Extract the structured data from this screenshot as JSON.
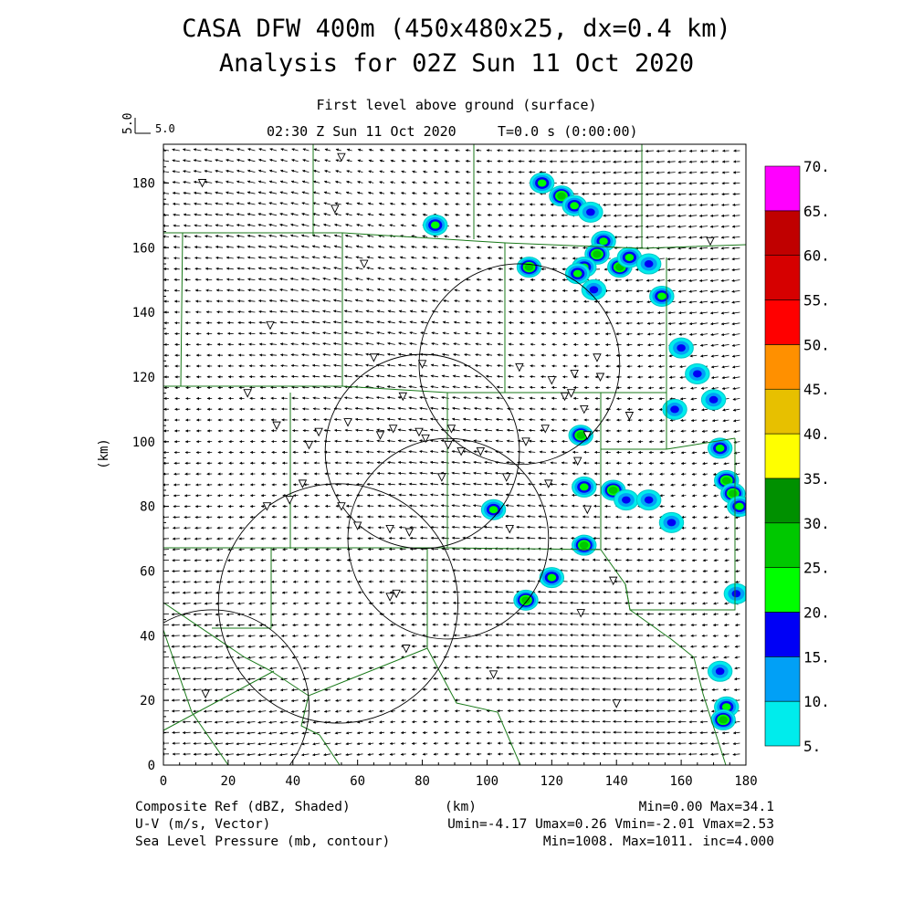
{
  "header": {
    "title_line1": "CASA DFW 400m (450x480x25, dx=0.4 km)",
    "title_line2": "Analysis for 02Z Sun 11 Oct 2020",
    "level_label": "First level above ground (surface)",
    "time_label": "02:30 Z Sun 11 Oct 2020",
    "elapsed_label": "T=0.0 s (0:00:00)",
    "vector_scale_rotated": "5.0",
    "vector_scale_label": "5.0"
  },
  "footer": {
    "field1_label": "Composite Ref (dBZ, Shaded)",
    "xaxis_unit": "(km)",
    "field1_stats": "Min=0.00 Max=34.1",
    "field2_label": "U-V (m/s, Vector)",
    "field2_stats": "Umin=-4.17 Umax=0.26 Vmin=-2.01 Vmax=2.53",
    "field3_label": "Sea Level Pressure (mb, contour)",
    "field3_stats": "Min=1008. Max=1011. inc=4.000"
  },
  "chart_data": {
    "type": "heatmap",
    "xlabel": "(km)",
    "ylabel": "(km)",
    "xlim": [
      0,
      180
    ],
    "ylim": [
      0,
      192
    ],
    "x_ticks": [
      0,
      20,
      40,
      60,
      80,
      100,
      120,
      140,
      160,
      180
    ],
    "y_ticks": [
      0,
      20,
      40,
      60,
      80,
      100,
      120,
      140,
      160,
      180
    ],
    "colorbar": {
      "levels": [
        "5.",
        "10.",
        "15.",
        "20.",
        "25.",
        "30.",
        "35.",
        "40.",
        "45.",
        "50.",
        "55.",
        "60.",
        "65.",
        "70."
      ],
      "colors": [
        "#00ecec",
        "#01a0f6",
        "#0000f6",
        "#00ff00",
        "#00c800",
        "#009000",
        "#ffff00",
        "#e7c000",
        "#ff9000",
        "#ff0000",
        "#d60000",
        "#c00000",
        "#ff00ff"
      ]
    },
    "reflectivity_cells": [
      {
        "x": 117,
        "y": 180,
        "dbz": 20
      },
      {
        "x": 123,
        "y": 176,
        "dbz": 25
      },
      {
        "x": 127,
        "y": 173,
        "dbz": 20
      },
      {
        "x": 132,
        "y": 171,
        "dbz": 15
      },
      {
        "x": 136,
        "y": 162,
        "dbz": 20
      },
      {
        "x": 134,
        "y": 158,
        "dbz": 25
      },
      {
        "x": 130,
        "y": 154,
        "dbz": 20
      },
      {
        "x": 128,
        "y": 152,
        "dbz": 20
      },
      {
        "x": 141,
        "y": 154,
        "dbz": 25
      },
      {
        "x": 144,
        "y": 157,
        "dbz": 20
      },
      {
        "x": 150,
        "y": 155,
        "dbz": 15
      },
      {
        "x": 154,
        "y": 145,
        "dbz": 20
      },
      {
        "x": 133,
        "y": 147,
        "dbz": 15
      },
      {
        "x": 113,
        "y": 154,
        "dbz": 25
      },
      {
        "x": 160,
        "y": 129,
        "dbz": 15
      },
      {
        "x": 165,
        "y": 121,
        "dbz": 15
      },
      {
        "x": 170,
        "y": 113,
        "dbz": 15
      },
      {
        "x": 158,
        "y": 110,
        "dbz": 15
      },
      {
        "x": 172,
        "y": 98,
        "dbz": 20
      },
      {
        "x": 174,
        "y": 88,
        "dbz": 25
      },
      {
        "x": 176,
        "y": 84,
        "dbz": 25
      },
      {
        "x": 178,
        "y": 80,
        "dbz": 20
      },
      {
        "x": 139,
        "y": 85,
        "dbz": 25
      },
      {
        "x": 143,
        "y": 82,
        "dbz": 15
      },
      {
        "x": 150,
        "y": 82,
        "dbz": 15
      },
      {
        "x": 157,
        "y": 75,
        "dbz": 15
      },
      {
        "x": 129,
        "y": 102,
        "dbz": 25
      },
      {
        "x": 130,
        "y": 86,
        "dbz": 20
      },
      {
        "x": 130,
        "y": 68,
        "dbz": 25
      },
      {
        "x": 120,
        "y": 58,
        "dbz": 20
      },
      {
        "x": 112,
        "y": 51,
        "dbz": 25
      },
      {
        "x": 102,
        "y": 79,
        "dbz": 20
      },
      {
        "x": 84,
        "y": 167,
        "dbz": 20
      },
      {
        "x": 177,
        "y": 53,
        "dbz": 15
      },
      {
        "x": 172,
        "y": 29,
        "dbz": 15
      },
      {
        "x": 174,
        "y": 18,
        "dbz": 20
      },
      {
        "x": 173,
        "y": 14,
        "dbz": 25
      }
    ],
    "pressure_contours_km": [
      {
        "cx": 88,
        "cy": 70,
        "r": 31
      },
      {
        "cx": 80,
        "cy": 97,
        "r": 30
      },
      {
        "cx": 110,
        "cy": 124,
        "r": 31
      },
      {
        "cx": 54,
        "cy": 50,
        "r": 37
      },
      {
        "cx": 15,
        "cy": 18,
        "r": 30
      }
    ]
  }
}
